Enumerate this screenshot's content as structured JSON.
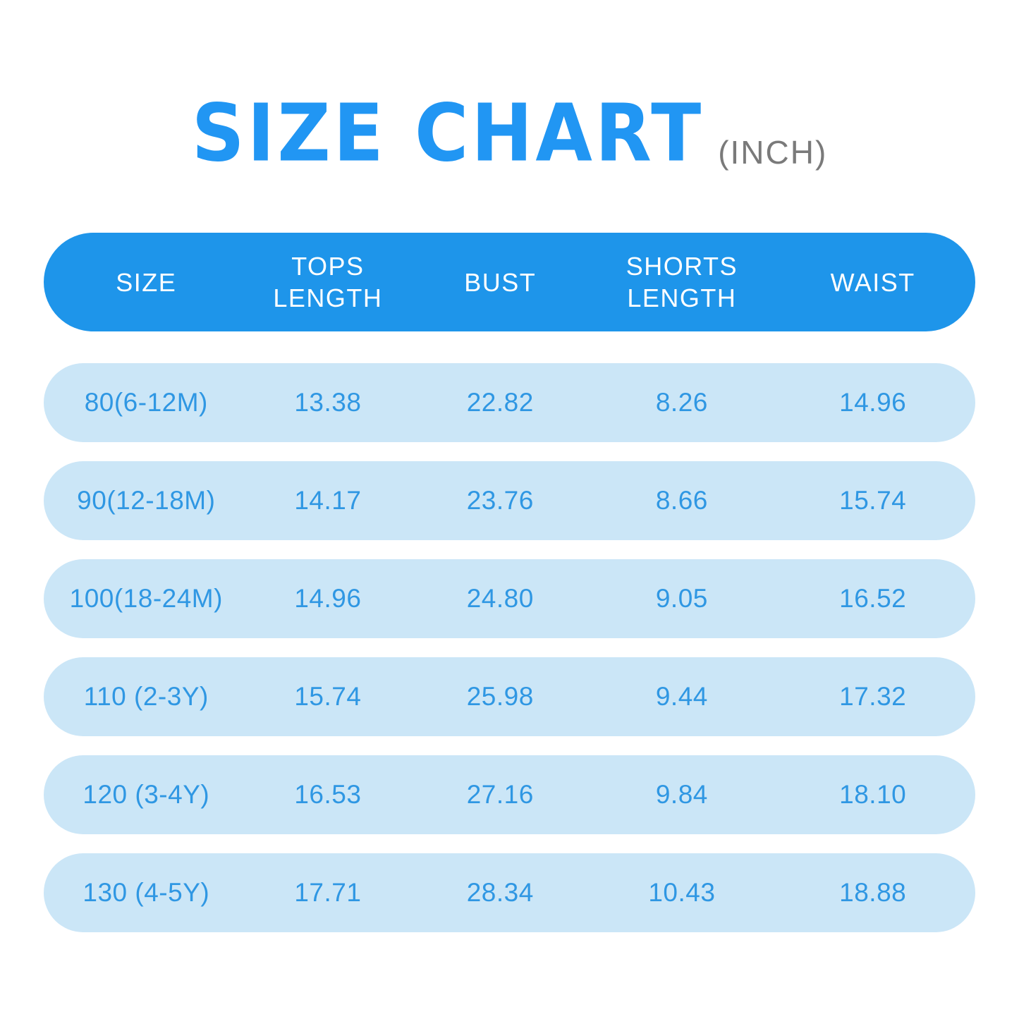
{
  "title": {
    "main": "SIZE CHART",
    "unit": "(INCH)"
  },
  "colors": {
    "title_blue": "#2196f3",
    "unit_gray": "#7a7a7a",
    "header_bg": "#1e95ea",
    "row_bg": "#cbe6f7",
    "row_text": "#2f97e3"
  },
  "chart_data": {
    "type": "table",
    "title": "SIZE CHART (INCH)",
    "units": "inch",
    "columns": [
      "SIZE",
      "TOPS LENGTH",
      "BUST",
      "SHORTS LENGTH",
      "WAIST"
    ],
    "rows": [
      [
        "80(6-12M)",
        "13.38",
        "22.82",
        "8.26",
        "14.96"
      ],
      [
        "90(12-18M)",
        "14.17",
        "23.76",
        "8.66",
        "15.74"
      ],
      [
        "100(18-24M)",
        "14.96",
        "24.80",
        "9.05",
        "16.52"
      ],
      [
        "110 (2-3Y)",
        "15.74",
        "25.98",
        "9.44",
        "17.32"
      ],
      [
        "120 (3-4Y)",
        "16.53",
        "27.16",
        "9.84",
        "18.10"
      ],
      [
        "130 (4-5Y)",
        "17.71",
        "28.34",
        "10.43",
        "18.88"
      ]
    ]
  }
}
